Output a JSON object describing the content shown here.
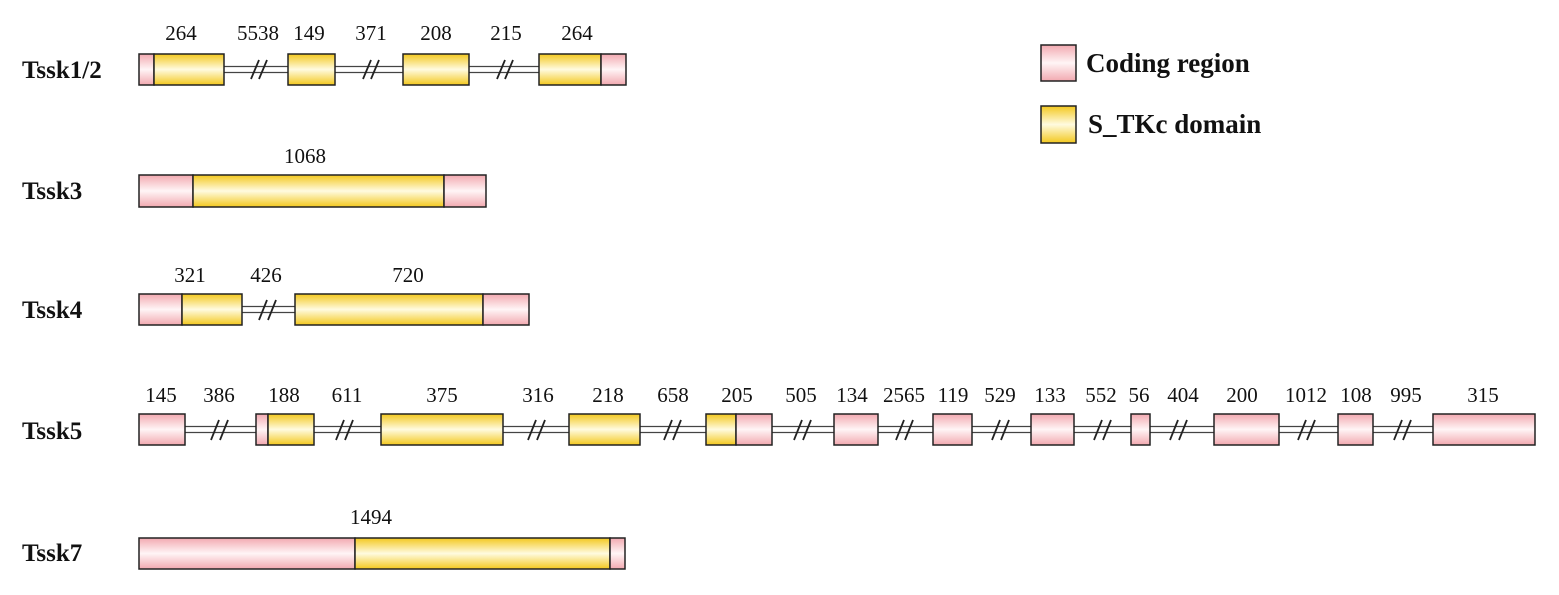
{
  "colors": {
    "coding": "#f7c3c8",
    "domain": "#f9d632",
    "outline": "#222222"
  },
  "legend": [
    {
      "label": "Coding region",
      "kind": "coding"
    },
    {
      "label": "S_TKc domain",
      "kind": "domain"
    }
  ],
  "genes": [
    {
      "name": "Tssk1/2",
      "labels": [
        "264",
        "5538",
        "149",
        "371",
        "208",
        "215",
        "264"
      ]
    },
    {
      "name": "Tssk3",
      "labels": [
        "1068"
      ]
    },
    {
      "name": "Tssk4",
      "labels": [
        "321",
        "426",
        "720"
      ]
    },
    {
      "name": "Tssk5",
      "labels": [
        "145",
        "386",
        "188",
        "611",
        "375",
        "316",
        "218",
        "658",
        "205",
        "505",
        "134",
        "2565",
        "119",
        "529",
        "133",
        "552",
        "56",
        "404",
        "200",
        "1012",
        "108",
        "995",
        "315"
      ]
    },
    {
      "name": "Tssk7",
      "labels": [
        "1494"
      ]
    }
  ]
}
